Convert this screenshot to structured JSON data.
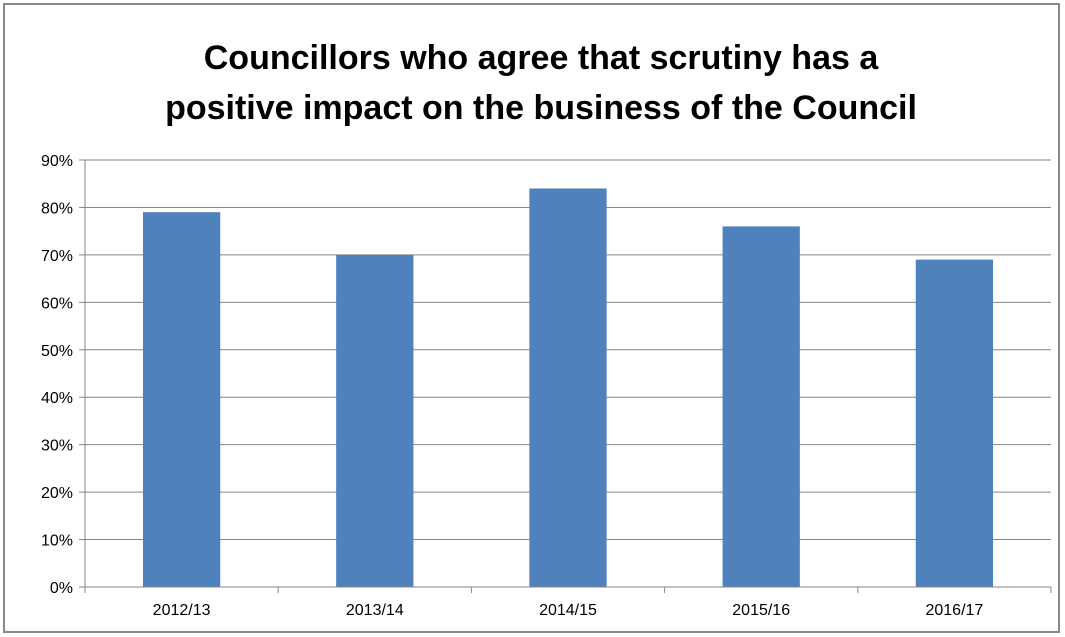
{
  "chart_data": {
    "type": "bar",
    "title_lines": [
      "Councillors who agree that scrutiny has a",
      "positive impact on the business of the Council"
    ],
    "categories": [
      "2012/13",
      "2013/14",
      "2014/15",
      "2015/16",
      "2016/17"
    ],
    "values": [
      79,
      70,
      84,
      76,
      69
    ],
    "value_unit": "%",
    "ylim": [
      0,
      90
    ],
    "y_ticks": [
      0,
      10,
      20,
      30,
      40,
      50,
      60,
      70,
      80,
      90
    ],
    "y_tick_labels": [
      "0%",
      "10%",
      "20%",
      "30%",
      "40%",
      "50%",
      "60%",
      "70%",
      "80%",
      "90%"
    ],
    "grid": true,
    "legend": "none",
    "bar_color": "#4f81bd",
    "grid_color": "#868686"
  }
}
